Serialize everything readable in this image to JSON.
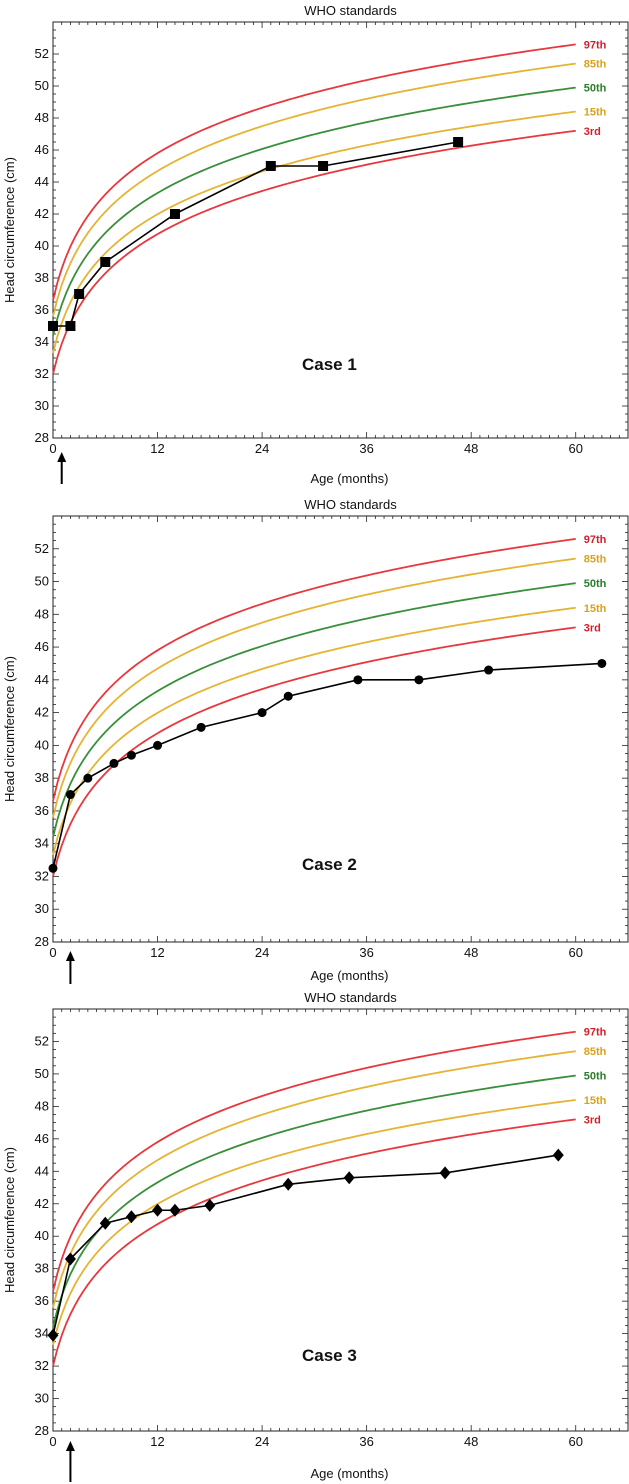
{
  "colors": {
    "red": "#e8383d",
    "yellow": "#e6b332",
    "green": "#3a8f3a",
    "series": "#000000",
    "label_red": "#d0202a",
    "label_yellow": "#d9a21c",
    "label_green": "#2b7d2b"
  },
  "chart_data": [
    {
      "type": "line",
      "title": "WHO standards",
      "xlabel": "Age (months)",
      "ylabel": "Head circumference (cm)",
      "xlim": [
        0,
        66
      ],
      "ylim": [
        28,
        54
      ],
      "xticks": [
        "0",
        "12",
        "24",
        "36",
        "48",
        "60"
      ],
      "yticks": [
        "28",
        "30",
        "32",
        "34",
        "36",
        "38",
        "40",
        "42",
        "44",
        "46",
        "48",
        "50",
        "52"
      ],
      "annotation": "Case 1",
      "arrow_at_month": 1,
      "percentile_labels": [
        "97th",
        "85th",
        "50th",
        "15th",
        "3rd"
      ],
      "series": [
        {
          "marker": "square",
          "x": [
            0,
            2,
            3,
            6,
            14,
            25,
            31,
            46.5
          ],
          "y": [
            35,
            35,
            37,
            39,
            42,
            45,
            45,
            46.5
          ]
        }
      ]
    },
    {
      "type": "line",
      "title": "WHO standards",
      "xlabel": "Age (months)",
      "ylabel": "Head circumference (cm)",
      "xlim": [
        0,
        66
      ],
      "ylim": [
        28,
        54
      ],
      "xticks": [
        "0",
        "12",
        "24",
        "36",
        "48",
        "60"
      ],
      "yticks": [
        "28",
        "30",
        "32",
        "34",
        "36",
        "38",
        "40",
        "42",
        "44",
        "46",
        "48",
        "50",
        "52"
      ],
      "annotation": "Case 2",
      "arrow_at_month": 2,
      "percentile_labels": [
        "97th",
        "85th",
        "50th",
        "15th",
        "3rd"
      ],
      "series": [
        {
          "marker": "circle",
          "x": [
            0,
            2,
            4,
            7,
            9,
            12,
            17,
            24,
            27,
            35,
            42,
            50,
            63
          ],
          "y": [
            32.5,
            37,
            38,
            38.9,
            39.4,
            40,
            41.1,
            42,
            43,
            44,
            44,
            44.6,
            45
          ]
        }
      ]
    },
    {
      "type": "line",
      "title": "WHO standards",
      "xlabel": "Age (months)",
      "ylabel": "Head circumference (cm)",
      "xlim": [
        0,
        66
      ],
      "ylim": [
        28,
        54
      ],
      "xticks": [
        "0",
        "12",
        "24",
        "36",
        "48",
        "60"
      ],
      "yticks": [
        "28",
        "30",
        "32",
        "34",
        "36",
        "38",
        "40",
        "42",
        "44",
        "46",
        "48",
        "50",
        "52"
      ],
      "annotation": "Case 3",
      "arrow_at_month": 2,
      "percentile_labels": [
        "97th",
        "85th",
        "50th",
        "15th",
        "3rd"
      ],
      "series": [
        {
          "marker": "diamond",
          "x": [
            0,
            2,
            6,
            9,
            12,
            14,
            18,
            27,
            34,
            45,
            58
          ],
          "y": [
            33.9,
            38.6,
            40.8,
            41.2,
            41.6,
            41.6,
            41.9,
            43.2,
            43.6,
            43.9,
            45
          ]
        }
      ]
    }
  ]
}
